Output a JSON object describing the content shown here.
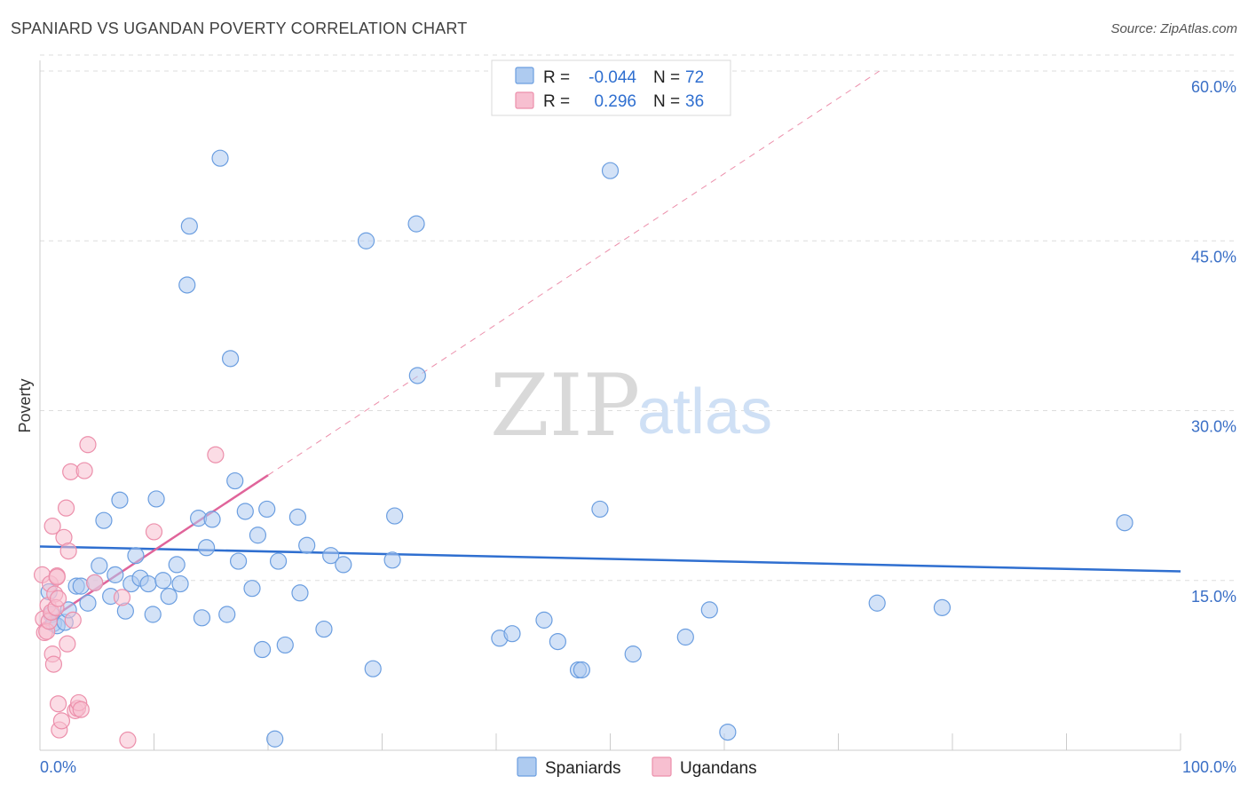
{
  "header": {
    "title": "SPANIARD VS UGANDAN POVERTY CORRELATION CHART",
    "source": "Source: ZipAtlas.com"
  },
  "watermark": {
    "zip": "ZIP",
    "atlas": "atlas"
  },
  "colors": {
    "spaniards_fill": "#aecbf0",
    "spaniards_stroke": "#6b9ee0",
    "spaniards_line": "#2f6fd0",
    "ugandans_fill": "#f7bfd0",
    "ugandans_stroke": "#ec8fab",
    "ugandans_line": "#e0649a",
    "grid": "#dddddd",
    "tick_label": "#3a6fc6"
  },
  "chart_data": {
    "type": "scatter",
    "title": "SPANIARD VS UGANDAN POVERTY CORRELATION CHART",
    "xlabel": "",
    "ylabel": "Poverty",
    "xlim": [
      0,
      100
    ],
    "ylim": [
      0,
      60
    ],
    "x_tick_labels": [
      "0.0%",
      "100.0%"
    ],
    "y_ticks": [
      15,
      30,
      45,
      60
    ],
    "y_tick_labels": [
      "15.0%",
      "30.0%",
      "45.0%",
      "60.0%"
    ],
    "legend": [
      {
        "r_label": "R =",
        "r_value": "-0.044",
        "n_label": "N =",
        "n_value": "72"
      },
      {
        "r_label": "R =",
        "r_value": "0.296",
        "n_label": "N =",
        "n_value": "36"
      }
    ],
    "series": [
      {
        "name": "Spaniards",
        "trend": {
          "x": [
            0,
            100
          ],
          "y": [
            18.0,
            15.8
          ]
        },
        "points": [
          [
            0.8,
            14.0
          ],
          [
            1.0,
            12.0
          ],
          [
            1.2,
            11.2
          ],
          [
            1.5,
            11.0
          ],
          [
            2.2,
            11.3
          ],
          [
            2.5,
            12.4
          ],
          [
            3.2,
            14.5
          ],
          [
            3.6,
            14.5
          ],
          [
            4.2,
            13.0
          ],
          [
            4.8,
            14.8
          ],
          [
            5.2,
            16.3
          ],
          [
            5.6,
            20.3
          ],
          [
            6.2,
            13.6
          ],
          [
            6.6,
            15.5
          ],
          [
            7.0,
            22.1
          ],
          [
            7.5,
            12.3
          ],
          [
            8.0,
            14.7
          ],
          [
            8.4,
            17.2
          ],
          [
            8.8,
            15.2
          ],
          [
            9.5,
            14.7
          ],
          [
            9.9,
            12.0
          ],
          [
            10.2,
            22.2
          ],
          [
            10.8,
            15.0
          ],
          [
            11.3,
            13.6
          ],
          [
            12.0,
            16.4
          ],
          [
            12.3,
            14.7
          ],
          [
            12.9,
            41.1
          ],
          [
            13.1,
            46.3
          ],
          [
            13.9,
            20.5
          ],
          [
            14.2,
            11.7
          ],
          [
            14.6,
            17.9
          ],
          [
            15.1,
            20.4
          ],
          [
            15.8,
            52.3
          ],
          [
            16.4,
            12.0
          ],
          [
            16.7,
            34.6
          ],
          [
            17.1,
            23.8
          ],
          [
            17.4,
            16.7
          ],
          [
            18.0,
            21.1
          ],
          [
            18.6,
            14.3
          ],
          [
            19.1,
            19.0
          ],
          [
            19.5,
            8.9
          ],
          [
            19.9,
            21.3
          ],
          [
            20.6,
            1.0
          ],
          [
            20.9,
            16.7
          ],
          [
            21.5,
            9.3
          ],
          [
            22.6,
            20.6
          ],
          [
            22.8,
            13.9
          ],
          [
            23.4,
            18.1
          ],
          [
            24.9,
            10.7
          ],
          [
            25.5,
            17.2
          ],
          [
            26.6,
            16.4
          ],
          [
            28.6,
            45.0
          ],
          [
            29.2,
            7.2
          ],
          [
            30.9,
            16.8
          ],
          [
            31.1,
            20.7
          ],
          [
            33.0,
            46.5
          ],
          [
            33.1,
            33.1
          ],
          [
            40.3,
            9.9
          ],
          [
            41.4,
            10.3
          ],
          [
            44.2,
            11.5
          ],
          [
            45.4,
            9.6
          ],
          [
            47.2,
            7.1
          ],
          [
            47.5,
            7.1
          ],
          [
            49.1,
            21.3
          ],
          [
            50.0,
            51.2
          ],
          [
            52.0,
            8.5
          ],
          [
            56.6,
            10.0
          ],
          [
            58.7,
            12.4
          ],
          [
            60.3,
            1.6
          ],
          [
            73.4,
            13.0
          ],
          [
            79.1,
            12.6
          ],
          [
            95.1,
            20.1
          ]
        ]
      },
      {
        "name": "Ugandans",
        "trend": {
          "x": [
            0,
            20
          ],
          "y": [
            11.0,
            24.3
          ]
        },
        "trend_extended": {
          "x": [
            20,
            73.6
          ],
          "y": [
            24.3,
            60.0
          ]
        },
        "points": [
          [
            0.2,
            15.5
          ],
          [
            0.3,
            11.6
          ],
          [
            0.4,
            10.4
          ],
          [
            0.6,
            10.5
          ],
          [
            0.7,
            12.8
          ],
          [
            0.8,
            11.4
          ],
          [
            0.9,
            14.7
          ],
          [
            1.0,
            12.2
          ],
          [
            1.1,
            8.5
          ],
          [
            1.1,
            19.8
          ],
          [
            1.2,
            7.6
          ],
          [
            1.3,
            13.8
          ],
          [
            1.4,
            12.6
          ],
          [
            1.5,
            15.4
          ],
          [
            1.5,
            15.3
          ],
          [
            1.6,
            13.4
          ],
          [
            1.6,
            4.1
          ],
          [
            1.7,
            1.8
          ],
          [
            1.9,
            2.6
          ],
          [
            2.1,
            18.8
          ],
          [
            2.3,
            21.4
          ],
          [
            2.4,
            9.4
          ],
          [
            2.5,
            17.6
          ],
          [
            2.7,
            24.6
          ],
          [
            2.9,
            11.5
          ],
          [
            3.1,
            3.5
          ],
          [
            3.3,
            3.7
          ],
          [
            3.4,
            4.2
          ],
          [
            3.6,
            3.6
          ],
          [
            3.9,
            24.7
          ],
          [
            4.2,
            27.0
          ],
          [
            4.8,
            14.8
          ],
          [
            7.2,
            13.5
          ],
          [
            7.7,
            0.9
          ],
          [
            10.0,
            19.3
          ],
          [
            15.4,
            26.1
          ]
        ]
      }
    ]
  },
  "bottom_legend": {
    "spaniards": "Spaniards",
    "ugandans": "Ugandans"
  }
}
